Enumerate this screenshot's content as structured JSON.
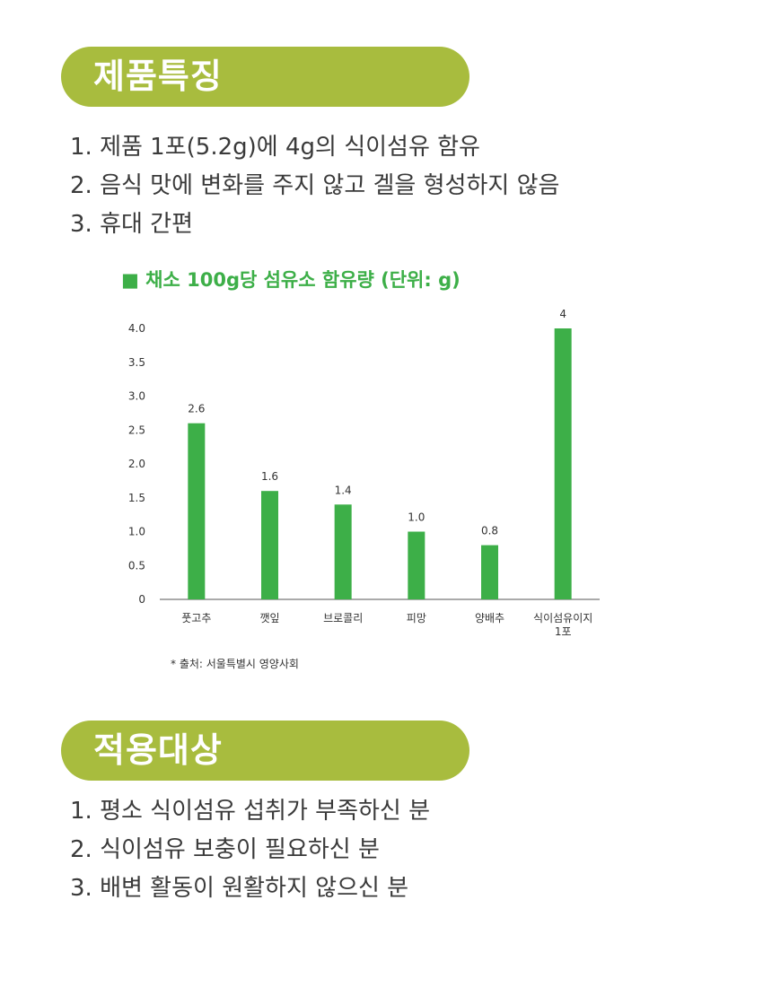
{
  "section1": {
    "title": "제품특징",
    "items": [
      "1. 제품 1포(5.2g)에 4g의 식이섬유 함유",
      "2. 음식 맛에 변화를 주지 않고 겔을 형성하지 않음",
      "3. 휴대 간편"
    ]
  },
  "chart_data": {
    "type": "bar",
    "title": "■ 채소 100g당 섬유소 함유량 (단위: g)",
    "categories": [
      "풋고추",
      "깻잎",
      "브로콜리",
      "피망",
      "양배추",
      "식이섬유이지 1포"
    ],
    "values": [
      2.6,
      1.6,
      1.4,
      1.0,
      0.8,
      4
    ],
    "value_labels": [
      "2.6",
      "1.6",
      "1.4",
      "1.0",
      "0.8",
      "4"
    ],
    "y_ticks": [
      "0",
      "0.5",
      "1.0",
      "1.5",
      "2.0",
      "2.5",
      "3.0",
      "3.5",
      "4.0"
    ],
    "ylim": [
      0,
      4
    ],
    "xlabel": "",
    "ylabel": "",
    "grid": false,
    "bar_color": "#3daf48",
    "title_color": "#3daf48"
  },
  "source": "* 출처: 서울특별시 영양사회",
  "section2": {
    "title": "적용대상",
    "items": [
      "1. 평소 식이섬유 섭취가 부족하신 분",
      "2. 식이섬유 보충이 필요하신 분",
      "3. 배변 활동이 원활하지 않으신 분"
    ]
  },
  "colors": {
    "header_pill": "#a8bc3e",
    "accent_green": "#3daf48"
  }
}
